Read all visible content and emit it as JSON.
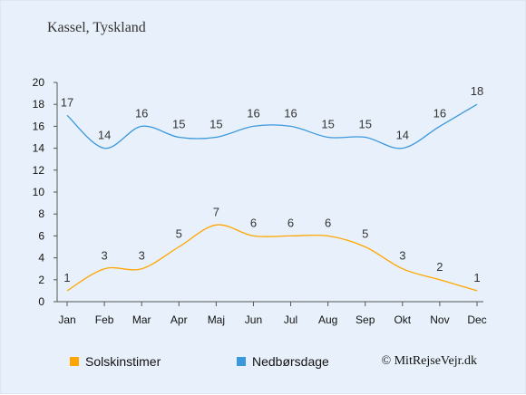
{
  "chart_data": {
    "type": "line",
    "title": "Kassel, Tyskland",
    "categories": [
      "Jan",
      "Feb",
      "Mar",
      "Apr",
      "Maj",
      "Jun",
      "Jul",
      "Aug",
      "Sep",
      "Okt",
      "Nov",
      "Dec"
    ],
    "ylim": [
      0,
      20
    ],
    "yticks": [
      0,
      2,
      4,
      6,
      8,
      10,
      12,
      14,
      16,
      18,
      20
    ],
    "grid": false,
    "legend_placement": "bottom-left",
    "series": [
      {
        "name": "Solskinstimer",
        "color": "#ffa500",
        "values": [
          1,
          3,
          3,
          5,
          7,
          6,
          6,
          6,
          5,
          3,
          2,
          1
        ]
      },
      {
        "name": "Nedbørsdage",
        "color": "#3b98dd",
        "values": [
          17,
          14,
          16,
          15,
          15,
          16,
          16,
          15,
          15,
          14,
          16,
          18
        ]
      }
    ]
  },
  "copyright": "© MitRejseVejr.dk"
}
